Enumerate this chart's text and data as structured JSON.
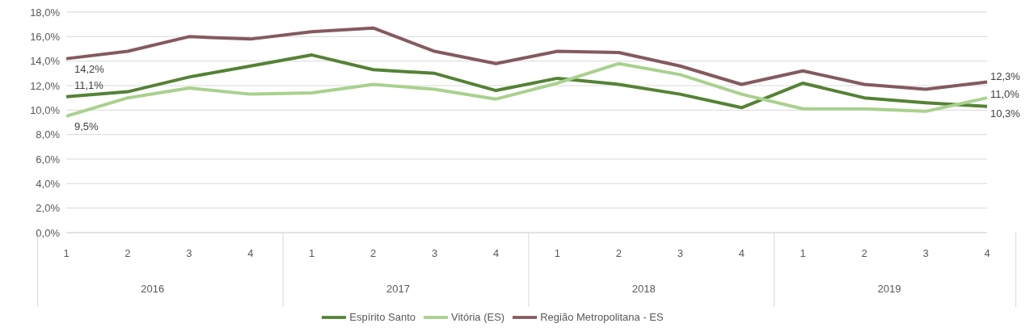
{
  "chart_data": {
    "type": "line",
    "categories": [
      "1",
      "2",
      "3",
      "4",
      "1",
      "2",
      "3",
      "4",
      "1",
      "2",
      "3",
      "4",
      "1",
      "2",
      "3",
      "4"
    ],
    "annotations": [
      "2016",
      "2017",
      "2018",
      "2019"
    ],
    "ylim": [
      0,
      18
    ],
    "yticks": [
      {
        "value": 0,
        "label": "0,0%"
      },
      {
        "value": 2,
        "label": "2,0%"
      },
      {
        "value": 4,
        "label": "4,0%"
      },
      {
        "value": 6,
        "label": "6,0%"
      },
      {
        "value": 8,
        "label": "8,0%"
      },
      {
        "value": 10,
        "label": "10,0%"
      },
      {
        "value": 12,
        "label": "12,0%"
      },
      {
        "value": 14,
        "label": "14,0%"
      },
      {
        "value": 16,
        "label": "16,0%"
      },
      {
        "value": 18,
        "label": "18,0%"
      }
    ],
    "grid": "y",
    "legend": "bottom",
    "marker": "none",
    "line_style": "solid",
    "series": [
      {
        "name": "Espírito Santo",
        "color": "#548235",
        "values": [
          11.1,
          11.5,
          12.7,
          13.6,
          14.5,
          13.3,
          13.0,
          11.6,
          12.6,
          12.1,
          11.3,
          10.2,
          12.2,
          11.0,
          10.6,
          10.3
        ],
        "value_labels": [
          "11,1%",
          null,
          null,
          null,
          null,
          null,
          null,
          null,
          null,
          null,
          null,
          null,
          null,
          null,
          null,
          "10,3%"
        ]
      },
      {
        "name": "Vitória (ES)",
        "color": "#a9d18e",
        "values": [
          9.5,
          11.0,
          11.8,
          11.3,
          11.4,
          12.1,
          11.7,
          10.9,
          12.2,
          13.8,
          12.9,
          11.3,
          10.1,
          10.1,
          9.9,
          11.0
        ],
        "value_labels": [
          "9,5%",
          null,
          null,
          null,
          null,
          null,
          null,
          null,
          null,
          null,
          null,
          null,
          null,
          null,
          null,
          "11,0%"
        ]
      },
      {
        "name": "Região Metropolitana - ES",
        "color": "#845a5e",
        "values": [
          14.2,
          14.8,
          16.0,
          15.8,
          16.4,
          16.7,
          14.8,
          13.8,
          14.8,
          14.7,
          13.6,
          12.1,
          13.2,
          12.1,
          11.7,
          12.3
        ],
        "value_labels": [
          "14,2%",
          null,
          null,
          null,
          null,
          null,
          null,
          null,
          null,
          null,
          null,
          null,
          null,
          null,
          null,
          "12,3%"
        ]
      }
    ]
  }
}
